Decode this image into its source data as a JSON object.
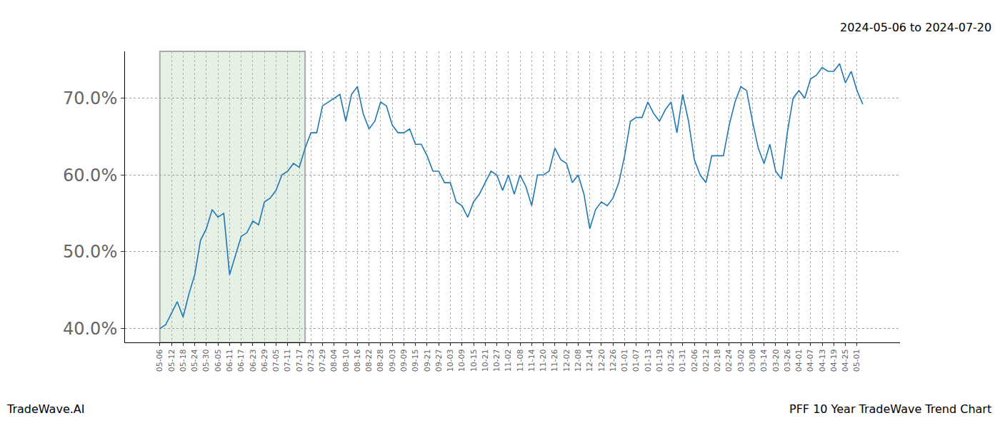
{
  "chart_data": {
    "type": "line",
    "title": "2024-05-06 to 2024-07-20",
    "footer_left": "TradeWave.AI",
    "footer_right": "PFF 10 Year TradeWave Trend Chart",
    "categories": [
      "05-06",
      null,
      "05-12",
      null,
      "05-18",
      null,
      "05-24",
      null,
      "05-30",
      null,
      "06-05",
      null,
      "06-11",
      null,
      "06-17",
      null,
      "06-23",
      null,
      "06-29",
      null,
      "07-05",
      null,
      "07-11",
      null,
      "07-17",
      null,
      "07-23",
      null,
      "07-29",
      null,
      "08-04",
      null,
      "08-10",
      null,
      "08-16",
      null,
      "08-22",
      null,
      "08-28",
      null,
      "09-03",
      null,
      "09-09",
      null,
      "09-15",
      null,
      "09-21",
      null,
      "09-27",
      null,
      "10-03",
      null,
      "10-09",
      null,
      "10-15",
      null,
      "10-21",
      null,
      "10-27",
      null,
      "11-02",
      null,
      "11-08",
      null,
      "11-14",
      null,
      "11-20",
      null,
      "11-26",
      null,
      "12-02",
      null,
      "12-08",
      null,
      "12-14",
      null,
      "12-20",
      null,
      "12-26",
      null,
      "01-01",
      null,
      "01-07",
      null,
      "01-13",
      null,
      "01-19",
      null,
      "01-25",
      null,
      "01-31",
      null,
      "02-06",
      null,
      "02-12",
      null,
      "02-18",
      null,
      "02-24",
      null,
      "03-02",
      null,
      "03-08",
      null,
      "03-14",
      null,
      "03-20",
      null,
      "03-26",
      null,
      "04-01",
      null,
      "04-07",
      null,
      "04-13",
      null,
      "04-19",
      null,
      "04-25",
      null,
      "05-01",
      null
    ],
    "values": [
      40.0,
      40.5,
      42.0,
      43.5,
      41.5,
      44.5,
      47.0,
      51.5,
      53.0,
      55.5,
      54.5,
      55.0,
      47.0,
      49.5,
      52.0,
      52.5,
      54.0,
      53.5,
      56.5,
      57.0,
      58.0,
      60.0,
      60.5,
      61.5,
      61.0,
      63.5,
      65.5,
      65.5,
      69.0,
      69.5,
      70.0,
      70.5,
      67.0,
      70.5,
      71.5,
      68.0,
      66.0,
      67.0,
      69.5,
      69.0,
      66.5,
      65.5,
      65.5,
      66.0,
      64.0,
      64.0,
      62.5,
      60.5,
      60.5,
      59.0,
      59.0,
      56.5,
      56.0,
      54.5,
      56.5,
      57.5,
      59.0,
      60.5,
      60.0,
      58.0,
      60.0,
      57.5,
      60.0,
      58.5,
      56.0,
      60.0,
      60.0,
      60.5,
      63.5,
      62.0,
      61.5,
      59.0,
      60.0,
      57.5,
      53.0,
      55.5,
      56.5,
      56.0,
      57.0,
      59.0,
      62.5,
      67.0,
      67.5,
      67.5,
      69.5,
      68.0,
      67.0,
      68.5,
      69.5,
      65.5,
      70.5,
      67.0,
      62.0,
      60.0,
      59.0,
      62.5,
      62.5,
      62.5,
      66.5,
      69.5,
      71.5,
      71.0,
      67.0,
      63.5,
      61.5,
      64.0,
      60.5,
      59.5,
      65.5,
      70.0,
      71.0,
      70.0,
      72.5,
      73.0,
      74.0,
      73.5,
      73.5,
      74.5,
      72.0,
      73.5,
      71.0,
      69.2
    ],
    "color": "#1f77b4",
    "shaded": {
      "start": 0,
      "end": 25
    },
    "xlim": [
      -6,
      127.4
    ],
    "ylim": [
      38.2,
      76.1
    ],
    "yticks": [
      {
        "value": 40,
        "label": "40.0%"
      },
      {
        "value": 50,
        "label": "50.0%"
      },
      {
        "value": 60,
        "label": "60.0%"
      },
      {
        "value": 70,
        "label": "70.0%"
      }
    ],
    "grid": true
  }
}
